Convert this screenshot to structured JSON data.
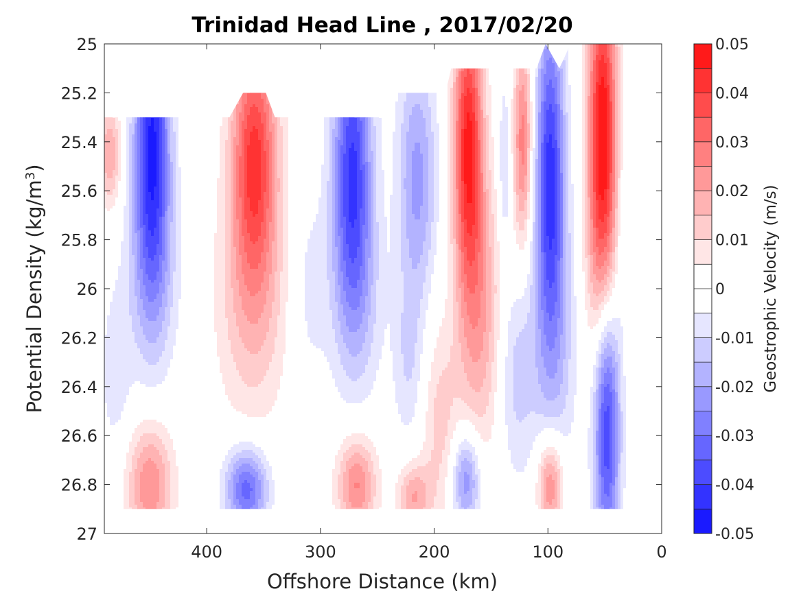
{
  "chart_data": {
    "type": "heatmap",
    "title": "Trinidad Head Line , 2017/02/20",
    "xlabel": "Offshore Distance (km)",
    "ylabel": "Potential Density (kg/m",
    "ylabel_sup": "3",
    "ylabel_end": ")",
    "xlim": [
      490,
      0
    ],
    "ylim": [
      25,
      27
    ],
    "y_reversed": true,
    "xticks": [
      400,
      300,
      200,
      100,
      0
    ],
    "xtick_labels": [
      "400",
      "300",
      "200",
      "100",
      "0"
    ],
    "yticks": [
      25,
      25.2,
      25.4,
      25.6,
      25.8,
      26,
      26.2,
      26.4,
      26.6,
      26.8,
      27
    ],
    "ytick_labels": [
      "25",
      "25.2",
      "25.4",
      "25.6",
      "25.8",
      "26",
      "26.2",
      "26.4",
      "26.6",
      "26.8",
      "27"
    ],
    "colorbar": {
      "label": "Geostrophic Velocity (m/s)",
      "range": [
        -0.05,
        0.05
      ],
      "levels": [
        -0.05,
        -0.045,
        -0.04,
        -0.035,
        -0.03,
        -0.025,
        -0.02,
        -0.015,
        -0.01,
        -0.005,
        0,
        0.005,
        0.01,
        0.015,
        0.02,
        0.025,
        0.03,
        0.035,
        0.04,
        0.045,
        0.05
      ],
      "tick_values": [
        0.05,
        0.04,
        0.03,
        0.02,
        0.01,
        0,
        -0.01,
        -0.02,
        -0.03,
        -0.04,
        -0.05
      ],
      "tick_labels": [
        "0.05",
        "0.04",
        "0.03",
        "0.02",
        "0.01",
        "0",
        "-0.01",
        "-0.02",
        "-0.03",
        "-0.04",
        "-0.05"
      ],
      "colormap": "blue-white-red",
      "neg_color": "#0000ff",
      "pos_color": "#ff0000",
      "zero_color": "#ffffff"
    },
    "field_x": [
      490,
      485,
      480,
      470,
      460,
      450,
      440,
      430,
      420,
      410,
      400,
      390,
      380,
      370,
      360,
      350,
      340,
      330,
      320,
      310,
      300,
      290,
      280,
      270,
      260,
      250,
      240,
      230,
      220,
      210,
      200,
      190,
      180,
      170,
      160,
      150,
      140,
      130,
      120,
      110,
      100,
      90,
      80,
      70,
      60,
      50,
      40,
      35,
      30
    ],
    "field_y": [
      25,
      25.1,
      25.2,
      25.3,
      25.4,
      25.5,
      25.6,
      25.7,
      25.8,
      25.9,
      26,
      26.1,
      26.2,
      26.3,
      26.4,
      26.5,
      26.6,
      26.7,
      26.8,
      26.9
    ],
    "features": [
      {
        "x": 448,
        "y": 25.4,
        "sx": 11,
        "sy": 0.45,
        "v": -0.045
      },
      {
        "x": 448,
        "y": 25.95,
        "sx": 18,
        "sy": 0.3,
        "v": -0.01
      },
      {
        "x": 485,
        "y": 25.45,
        "sx": 7,
        "sy": 0.15,
        "v": 0.02
      },
      {
        "x": 450,
        "y": 26.8,
        "sx": 14,
        "sy": 0.18,
        "v": 0.025
      },
      {
        "x": 480,
        "y": 26.35,
        "sx": 10,
        "sy": 0.25,
        "v": -0.008
      },
      {
        "x": 358,
        "y": 25.45,
        "sx": 14,
        "sy": 0.35,
        "v": 0.04
      },
      {
        "x": 360,
        "y": 26.05,
        "sx": 22,
        "sy": 0.35,
        "v": 0.015
      },
      {
        "x": 365,
        "y": 26.82,
        "sx": 13,
        "sy": 0.12,
        "v": -0.033
      },
      {
        "x": 306,
        "y": 25.35,
        "sx": 4,
        "sy": 0.05,
        "v": 0.006
      },
      {
        "x": 272,
        "y": 25.5,
        "sx": 12,
        "sy": 0.4,
        "v": -0.04
      },
      {
        "x": 268,
        "y": 26.05,
        "sx": 16,
        "sy": 0.3,
        "v": -0.012
      },
      {
        "x": 268,
        "y": 26.8,
        "sx": 12,
        "sy": 0.14,
        "v": 0.026
      },
      {
        "x": 310,
        "y": 26.0,
        "sx": 12,
        "sy": 0.3,
        "v": -0.007
      },
      {
        "x": 215,
        "y": 25.55,
        "sx": 12,
        "sy": 0.35,
        "v": -0.022
      },
      {
        "x": 222,
        "y": 26.3,
        "sx": 10,
        "sy": 0.25,
        "v": -0.01
      },
      {
        "x": 195,
        "y": 26.55,
        "sx": 12,
        "sy": 0.3,
        "v": 0.012
      },
      {
        "x": 218,
        "y": 26.85,
        "sx": 10,
        "sy": 0.1,
        "v": 0.02
      },
      {
        "x": 170,
        "y": 25.4,
        "sx": 9,
        "sy": 0.4,
        "v": 0.045
      },
      {
        "x": 160,
        "y": 26.1,
        "sx": 14,
        "sy": 0.4,
        "v": 0.02
      },
      {
        "x": 172,
        "y": 26.78,
        "sx": 9,
        "sy": 0.14,
        "v": -0.026
      },
      {
        "x": 138,
        "y": 25.5,
        "sx": 4,
        "sy": 0.25,
        "v": -0.012
      },
      {
        "x": 122,
        "y": 25.4,
        "sx": 6,
        "sy": 0.3,
        "v": 0.028
      },
      {
        "x": 128,
        "y": 26.35,
        "sx": 12,
        "sy": 0.3,
        "v": -0.012
      },
      {
        "x": 98,
        "y": 25.5,
        "sx": 9,
        "sy": 0.45,
        "v": -0.04
      },
      {
        "x": 95,
        "y": 26.2,
        "sx": 14,
        "sy": 0.4,
        "v": -0.015
      },
      {
        "x": 98,
        "y": 26.8,
        "sx": 8,
        "sy": 0.14,
        "v": 0.028
      },
      {
        "x": 52,
        "y": 25.35,
        "sx": 9,
        "sy": 0.45,
        "v": 0.05
      },
      {
        "x": 52,
        "y": 25.95,
        "sx": 11,
        "sy": 0.3,
        "v": 0.012
      },
      {
        "x": 48,
        "y": 26.55,
        "sx": 8,
        "sy": 0.4,
        "v": -0.04
      },
      {
        "x": 35,
        "y": 25.8,
        "sx": 4,
        "sy": 0.3,
        "v": -0.006
      }
    ],
    "data_region": {
      "upper_boundary": [
        {
          "x": 490,
          "y": 25.3
        },
        {
          "x": 322,
          "y": 25.3
        },
        {
          "x": 330,
          "y": 25.3
        },
        {
          "x": 340,
          "y": 25.3
        },
        {
          "x": 348,
          "y": 25.2
        },
        {
          "x": 368,
          "y": 25.2
        },
        {
          "x": 380,
          "y": 25.3
        },
        {
          "x": 390,
          "y": 25.3
        },
        {
          "x": 322,
          "y": 25.3
        },
        {
          "x": 300,
          "y": 25.3
        },
        {
          "x": 248,
          "y": 25.3
        },
        {
          "x": 238,
          "y": 25.2
        },
        {
          "x": 190,
          "y": 25.2
        },
        {
          "x": 185,
          "y": 25.1
        },
        {
          "x": 110,
          "y": 25.1
        },
        {
          "x": 102,
          "y": 25.0
        },
        {
          "x": 90,
          "y": 25.1
        },
        {
          "x": 80,
          "y": 25.0
        },
        {
          "x": 30,
          "y": 25.0
        }
      ],
      "bottom": 26.9,
      "right": 30
    }
  }
}
